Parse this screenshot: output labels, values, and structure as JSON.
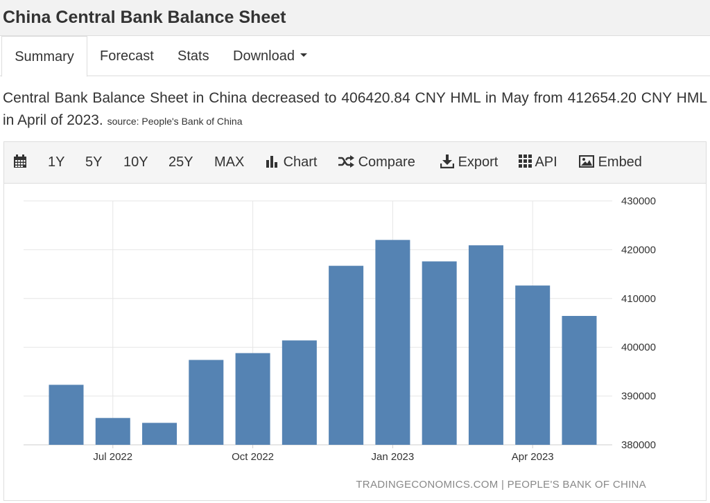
{
  "page": {
    "title": "China Central Bank Balance Sheet"
  },
  "tabs": [
    {
      "label": "Summary",
      "active": true
    },
    {
      "label": "Forecast"
    },
    {
      "label": "Stats"
    },
    {
      "label": "Download"
    }
  ],
  "summary": {
    "text": "Central Bank Balance Sheet in China decreased to 406420.84 CNY HML in May from 412654.20 CNY HML in April of 2023.",
    "source": "source: People's Bank of China"
  },
  "toolbar": {
    "calendar_icon": "calendar-icon",
    "ranges": [
      "1Y",
      "5Y",
      "10Y",
      "25Y",
      "MAX"
    ],
    "chart_label": "Chart",
    "compare_label": "Compare",
    "export_label": "Export",
    "api_label": "API",
    "embed_label": "Embed"
  },
  "chart_data": {
    "type": "bar",
    "categories": [
      "Jun 2022",
      "Jul 2022",
      "Aug 2022",
      "Sep 2022",
      "Oct 2022",
      "Nov 2022",
      "Dec 2022",
      "Jan 2023",
      "Feb 2023",
      "Mar 2023",
      "Apr 2023",
      "May 2023"
    ],
    "values": [
      392300,
      385500,
      384500,
      397400,
      398800,
      401400,
      416700,
      422000,
      417600,
      420900,
      412654.2,
      406420.84
    ],
    "x_tick_labels": [
      "Jul 2022",
      "Oct 2022",
      "Jan 2023",
      "Apr 2023"
    ],
    "y_ticks": [
      380000,
      390000,
      400000,
      410000,
      420000,
      430000
    ],
    "ylim": [
      380000,
      430000
    ],
    "y_axis_position": "right",
    "grid": true,
    "bar_color": "#5583b3",
    "grid_color": "#e6e6e6",
    "credit": "TRADINGECONOMICS.COM | PEOPLE'S BANK OF CHINA"
  }
}
